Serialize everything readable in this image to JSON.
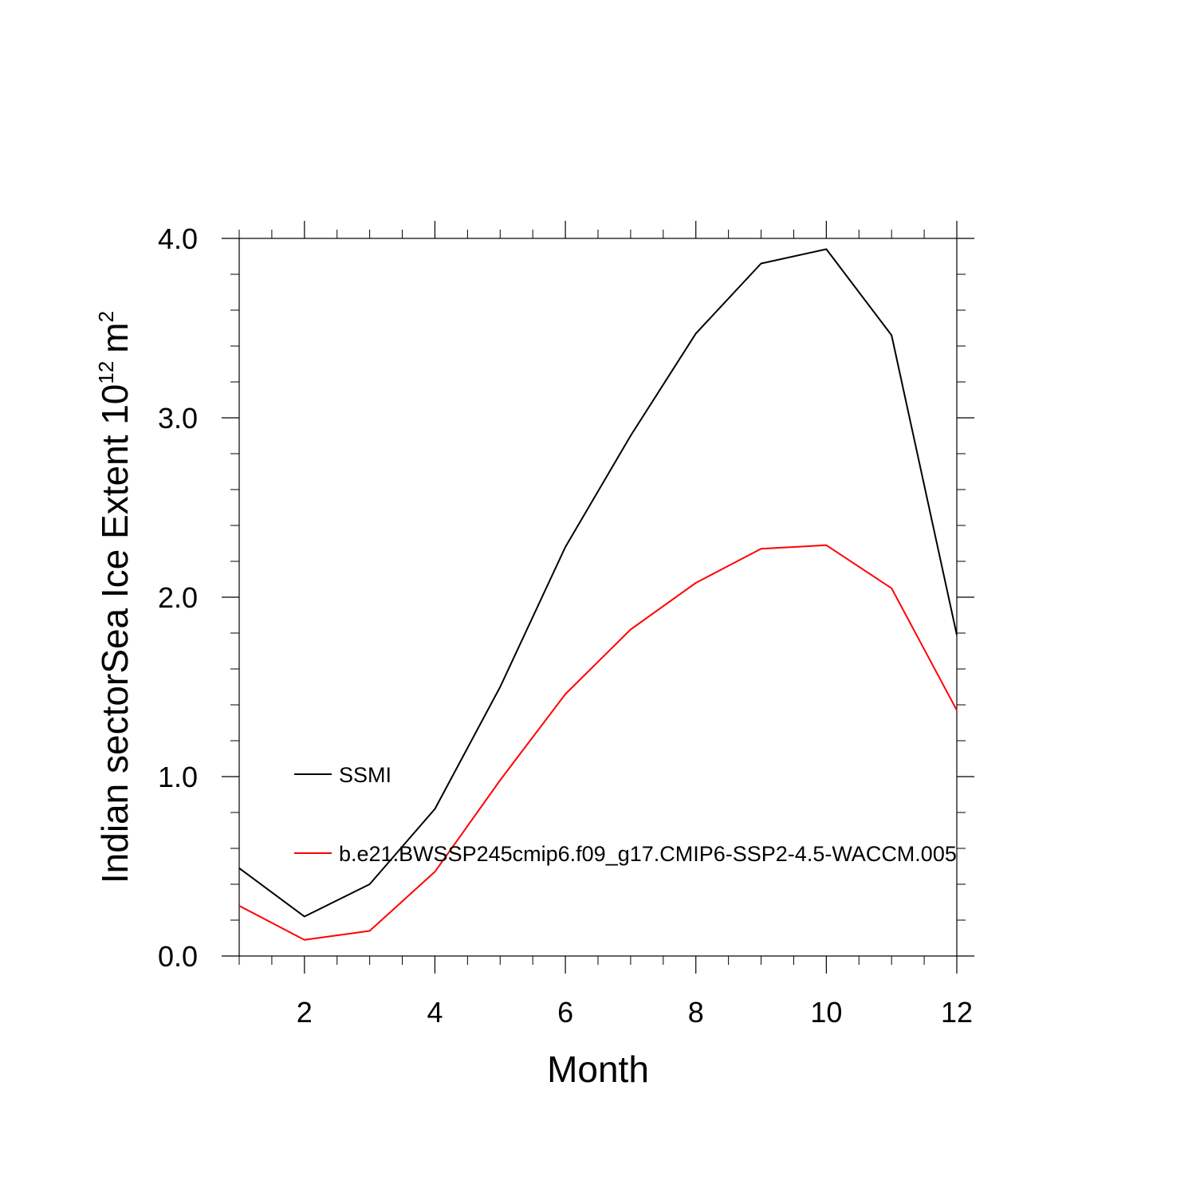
{
  "chart_data": {
    "type": "line",
    "title": "",
    "xlabel": "Month",
    "ylabel": {
      "text": "Indian sectorSea Ice Extent 10",
      "exponent": "12",
      "unit": "m",
      "unit_exponent": "2"
    },
    "xlim": [
      1,
      12
    ],
    "ylim": [
      0,
      4
    ],
    "x_major_ticks": [
      2,
      4,
      6,
      8,
      10,
      12
    ],
    "x_tick_labels": [
      "2",
      "4",
      "6",
      "8",
      "10",
      "12"
    ],
    "y_major_ticks": [
      0,
      1,
      2,
      3,
      4
    ],
    "y_tick_labels": [
      "0.0",
      "1.0",
      "2.0",
      "3.0",
      "4.0"
    ],
    "x": [
      1,
      2,
      3,
      4,
      5,
      6,
      7,
      8,
      9,
      10,
      11,
      12
    ],
    "series": [
      {
        "name": "SSMI",
        "color": "#000000",
        "values": [
          0.49,
          0.22,
          0.4,
          0.82,
          1.5,
          2.28,
          2.9,
          3.47,
          3.86,
          3.94,
          3.46,
          1.79
        ]
      },
      {
        "name": "b.e21.BWSSP245cmip6.f09_g17.CMIP6-SSP2-4.5-WACCM.005",
        "color": "#ff0000",
        "values": [
          0.28,
          0.09,
          0.14,
          0.47,
          0.98,
          1.46,
          1.82,
          2.08,
          2.27,
          2.29,
          2.05,
          1.37
        ]
      }
    ],
    "legend": {
      "position": "inside-left"
    }
  }
}
